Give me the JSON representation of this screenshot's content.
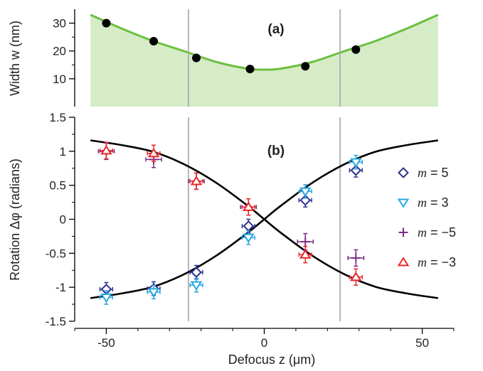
{
  "colors": {
    "fit_line_a": "#6cbf3f",
    "fill_a": "#d5ecc7",
    "points_a": "#000000",
    "fit_lines_b": "#000000",
    "marker_lines": "#a6a6a6",
    "m5": "#2e3192",
    "m3": "#29a8e0",
    "mneg5": "#7b2d87",
    "mneg3": "#e8272a"
  },
  "chart_data": [
    {
      "type": "scatter",
      "panel_label": "(a)",
      "ylabel": "Width w (nm)",
      "xlim": [
        -60,
        60
      ],
      "ylim": [
        0,
        35
      ],
      "yticks": [
        "10",
        "20",
        "30"
      ],
      "ytick_values": [
        10,
        20,
        30
      ],
      "grid": false,
      "vertical_lines_x": [
        -24,
        24
      ],
      "series": [
        {
          "kind": "points",
          "x": [
            -50,
            -35,
            -21.5,
            -4.5,
            13,
            29
          ],
          "y": [
            30,
            23.5,
            17.5,
            13.5,
            14.5,
            20.5
          ]
        },
        {
          "kind": "fit_line_with_fill",
          "x": [
            -55,
            -45,
            -35,
            -25,
            -15,
            -5,
            0,
            5,
            15,
            25,
            35,
            45,
            55
          ],
          "y": [
            33,
            28,
            23.5,
            19.8,
            16,
            13.6,
            13.3,
            13.6,
            16,
            19.8,
            23.5,
            28,
            33
          ]
        }
      ]
    },
    {
      "type": "scatter",
      "panel_label": "(b)",
      "ylabel": "Rotation Δφ (radians)",
      "xlabel": "Defocus z (μm)",
      "xlim": [
        -60,
        60
      ],
      "ylim": [
        -1.5,
        1.5
      ],
      "xticks": [
        "-50",
        "0",
        "50"
      ],
      "xtick_values": [
        -50,
        0,
        50
      ],
      "yticks": [
        "1.5",
        "1",
        "0.5",
        "0",
        "-0.5",
        "-1",
        "-1.5"
      ],
      "ytick_values": [
        1.5,
        1,
        0.5,
        0,
        -0.5,
        -1,
        -1.5
      ],
      "grid": false,
      "vertical_lines_x": [
        -24,
        24
      ],
      "legend_position": "right",
      "legend": [
        {
          "label_var": "m",
          "label_value": "= 5",
          "marker": "diamond",
          "color_key": "m5"
        },
        {
          "label_var": "m",
          "label_value": "= 3",
          "marker": "triangle-down",
          "color_key": "m3"
        },
        {
          "label_var": "m",
          "label_value": "= −5",
          "marker": "plus",
          "color_key": "mneg5"
        },
        {
          "label_var": "m",
          "label_value": "= −3",
          "marker": "triangle-up",
          "color_key": "mneg3"
        }
      ],
      "fits": [
        {
          "x": [
            -55,
            -45,
            -35,
            -25,
            -15,
            -5,
            0,
            5,
            15,
            25,
            35,
            45,
            55
          ],
          "y": [
            1.16,
            1.09,
            0.99,
            0.8,
            0.53,
            0.19,
            0,
            -0.19,
            -0.53,
            -0.8,
            -0.99,
            -1.09,
            -1.16
          ]
        },
        {
          "x": [
            -55,
            -45,
            -35,
            -25,
            -15,
            -5,
            0,
            5,
            15,
            25,
            35,
            45,
            55
          ],
          "y": [
            -1.16,
            -1.09,
            -0.99,
            -0.8,
            -0.53,
            -0.19,
            0,
            0.19,
            0.53,
            0.8,
            0.99,
            1.09,
            1.16
          ]
        }
      ],
      "series": [
        {
          "color_key": "m5",
          "marker": "diamond",
          "x": [
            -50,
            -35,
            -21.5,
            -5,
            13,
            29
          ],
          "y": [
            -1.03,
            -1.02,
            -0.78,
            -0.1,
            0.28,
            0.72
          ],
          "yerr": 0.1,
          "xerr": 2
        },
        {
          "color_key": "m3",
          "marker": "triangle-down",
          "x": [
            -50,
            -35,
            -21.5,
            -5,
            13,
            29
          ],
          "y": [
            -1.15,
            -1.07,
            -0.97,
            -0.27,
            0.41,
            0.84
          ],
          "yerr": 0.1,
          "xerr": 2
        },
        {
          "color_key": "mneg5",
          "marker": "plus",
          "x": [
            -50,
            -35,
            -21.5,
            -5,
            13,
            29
          ],
          "y": [
            1.0,
            0.88,
            0.56,
            0.18,
            -0.33,
            -0.57
          ],
          "yerr": 0.12,
          "xerr": 2.5
        },
        {
          "color_key": "mneg3",
          "marker": "triangle-up",
          "x": [
            -50,
            -35,
            -21.5,
            -5,
            13,
            29
          ],
          "y": [
            1.01,
            0.97,
            0.56,
            0.18,
            -0.52,
            -0.85
          ],
          "yerr": 0.12,
          "xerr": 2
        }
      ]
    }
  ]
}
